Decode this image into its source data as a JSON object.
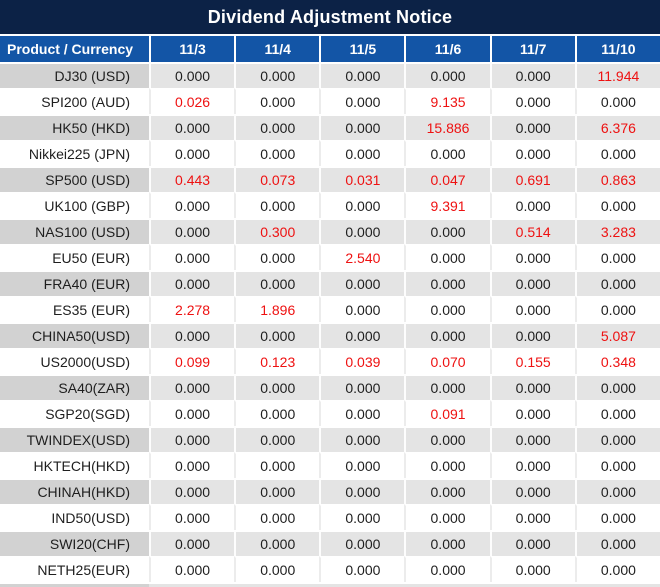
{
  "title": "Dividend Adjustment Notice",
  "colors": {
    "title_bg": "#0c2246",
    "header_bg": "#1355a6",
    "highlight_red": "#ee1111",
    "row_label_gray": "#d2d2d2",
    "row_value_gray": "#e4e4e4",
    "text": "#1e1e1e"
  },
  "table": {
    "product_header": "Product / Currency",
    "date_headers": [
      "11/3",
      "11/4",
      "11/5",
      "11/6",
      "11/7",
      "11/10"
    ],
    "rows": [
      {
        "product": "DJ30 (USD)",
        "values": [
          "0.000",
          "0.000",
          "0.000",
          "0.000",
          "0.000",
          "11.944"
        ],
        "red": [
          false,
          false,
          false,
          false,
          false,
          true
        ]
      },
      {
        "product": "SPI200 (AUD)",
        "values": [
          "0.026",
          "0.000",
          "0.000",
          "9.135",
          "0.000",
          "0.000"
        ],
        "red": [
          true,
          false,
          false,
          true,
          false,
          false
        ]
      },
      {
        "product": "HK50 (HKD)",
        "values": [
          "0.000",
          "0.000",
          "0.000",
          "15.886",
          "0.000",
          "6.376"
        ],
        "red": [
          false,
          false,
          false,
          true,
          false,
          true
        ]
      },
      {
        "product": "Nikkei225 (JPN)",
        "values": [
          "0.000",
          "0.000",
          "0.000",
          "0.000",
          "0.000",
          "0.000"
        ],
        "red": [
          false,
          false,
          false,
          false,
          false,
          false
        ]
      },
      {
        "product": "SP500 (USD)",
        "values": [
          "0.443",
          "0.073",
          "0.031",
          "0.047",
          "0.691",
          "0.863"
        ],
        "red": [
          true,
          true,
          true,
          true,
          true,
          true
        ]
      },
      {
        "product": "UK100 (GBP)",
        "values": [
          "0.000",
          "0.000",
          "0.000",
          "9.391",
          "0.000",
          "0.000"
        ],
        "red": [
          false,
          false,
          false,
          true,
          false,
          false
        ]
      },
      {
        "product": "NAS100 (USD)",
        "values": [
          "0.000",
          "0.300",
          "0.000",
          "0.000",
          "0.514",
          "3.283"
        ],
        "red": [
          false,
          true,
          false,
          false,
          true,
          true
        ]
      },
      {
        "product": "EU50 (EUR)",
        "values": [
          "0.000",
          "0.000",
          "2.540",
          "0.000",
          "0.000",
          "0.000"
        ],
        "red": [
          false,
          false,
          true,
          false,
          false,
          false
        ]
      },
      {
        "product": "FRA40 (EUR)",
        "values": [
          "0.000",
          "0.000",
          "0.000",
          "0.000",
          "0.000",
          "0.000"
        ],
        "red": [
          false,
          false,
          false,
          false,
          false,
          false
        ]
      },
      {
        "product": "ES35 (EUR)",
        "values": [
          "2.278",
          "1.896",
          "0.000",
          "0.000",
          "0.000",
          "0.000"
        ],
        "red": [
          true,
          true,
          false,
          false,
          false,
          false
        ]
      },
      {
        "product": "CHINA50(USD)",
        "values": [
          "0.000",
          "0.000",
          "0.000",
          "0.000",
          "0.000",
          "5.087"
        ],
        "red": [
          false,
          false,
          false,
          false,
          false,
          true
        ]
      },
      {
        "product": "US2000(USD)",
        "values": [
          "0.099",
          "0.123",
          "0.039",
          "0.070",
          "0.155",
          "0.348"
        ],
        "red": [
          true,
          true,
          true,
          true,
          true,
          true
        ]
      },
      {
        "product": "SA40(ZAR)",
        "values": [
          "0.000",
          "0.000",
          "0.000",
          "0.000",
          "0.000",
          "0.000"
        ],
        "red": [
          false,
          false,
          false,
          false,
          false,
          false
        ]
      },
      {
        "product": "SGP20(SGD)",
        "values": [
          "0.000",
          "0.000",
          "0.000",
          "0.091",
          "0.000",
          "0.000"
        ],
        "red": [
          false,
          false,
          false,
          true,
          false,
          false
        ]
      },
      {
        "product": "TWINDEX(USD)",
        "values": [
          "0.000",
          "0.000",
          "0.000",
          "0.000",
          "0.000",
          "0.000"
        ],
        "red": [
          false,
          false,
          false,
          false,
          false,
          false
        ]
      },
      {
        "product": "HKTECH(HKD)",
        "values": [
          "0.000",
          "0.000",
          "0.000",
          "0.000",
          "0.000",
          "0.000"
        ],
        "red": [
          false,
          false,
          false,
          false,
          false,
          false
        ]
      },
      {
        "product": "CHINAH(HKD)",
        "values": [
          "0.000",
          "0.000",
          "0.000",
          "0.000",
          "0.000",
          "0.000"
        ],
        "red": [
          false,
          false,
          false,
          false,
          false,
          false
        ]
      },
      {
        "product": "IND50(USD)",
        "values": [
          "0.000",
          "0.000",
          "0.000",
          "0.000",
          "0.000",
          "0.000"
        ],
        "red": [
          false,
          false,
          false,
          false,
          false,
          false
        ]
      },
      {
        "product": "SWI20(CHF)",
        "values": [
          "0.000",
          "0.000",
          "0.000",
          "0.000",
          "0.000",
          "0.000"
        ],
        "red": [
          false,
          false,
          false,
          false,
          false,
          false
        ]
      },
      {
        "product": "NETH25(EUR)",
        "values": [
          "0.000",
          "0.000",
          "0.000",
          "0.000",
          "0.000",
          "0.000"
        ],
        "red": [
          false,
          false,
          false,
          false,
          false,
          false
        ]
      }
    ]
  }
}
